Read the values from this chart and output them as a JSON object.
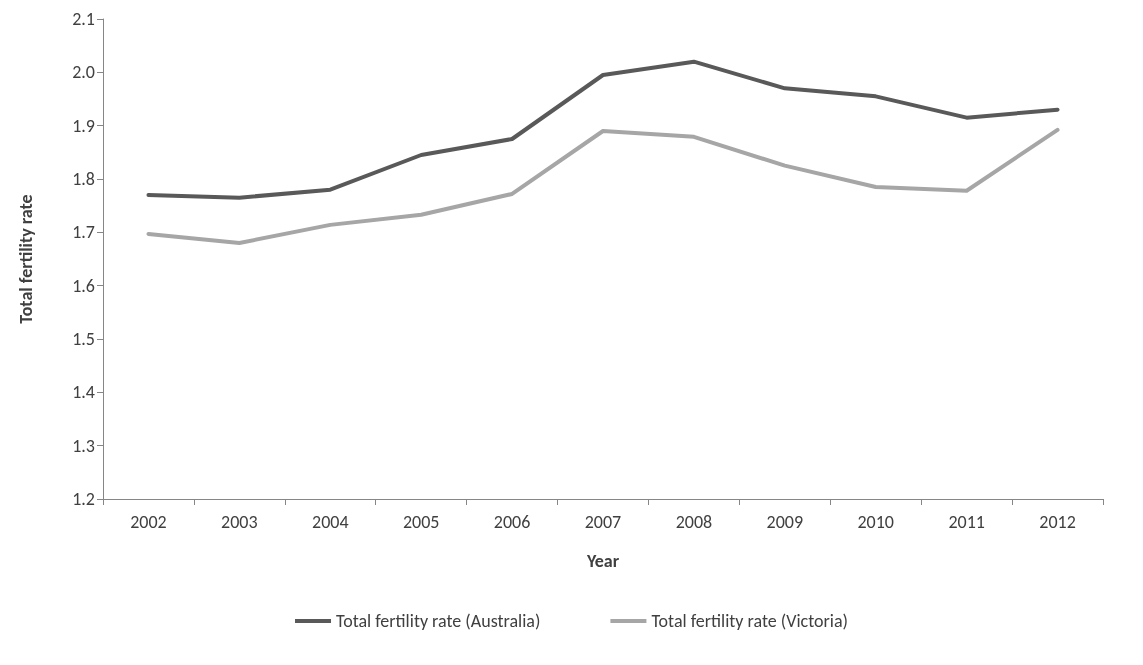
{
  "chart_data": {
    "type": "line",
    "xlabel": "Year",
    "ylabel": "Total fertility rate",
    "categories": [
      "2002",
      "2003",
      "2004",
      "2005",
      "2006",
      "2007",
      "2008",
      "2009",
      "2010",
      "2011",
      "2012"
    ],
    "series": [
      {
        "name": "Total fertility rate (Australia)",
        "color": "#595959",
        "values": [
          1.77,
          1.765,
          1.78,
          1.845,
          1.875,
          1.995,
          2.02,
          1.97,
          1.955,
          1.915,
          1.93
        ]
      },
      {
        "name": "Total fertility rate (Victoria)",
        "color": "#a6a6a6",
        "values": [
          1.697,
          1.68,
          1.714,
          1.733,
          1.772,
          1.89,
          1.879,
          1.825,
          1.785,
          1.778,
          1.892
        ]
      }
    ],
    "ylim": [
      1.2,
      2.1
    ],
    "yticks": [
      {
        "value": 1.2,
        "label": "1.2"
      },
      {
        "value": 1.3,
        "label": "1.3"
      },
      {
        "value": 1.4,
        "label": "1.4"
      },
      {
        "value": 1.5,
        "label": "1.5"
      },
      {
        "value": 1.6,
        "label": "1.6"
      },
      {
        "value": 1.7,
        "label": "1.7"
      },
      {
        "value": 1.8,
        "label": "1.8"
      },
      {
        "value": 1.9,
        "label": "1.9"
      },
      {
        "value": 2.0,
        "label": "2.0"
      },
      {
        "value": 2.1,
        "label": "2.1"
      }
    ],
    "grid": false,
    "legend": "bottom",
    "marker": "none",
    "line_style": "solid"
  }
}
